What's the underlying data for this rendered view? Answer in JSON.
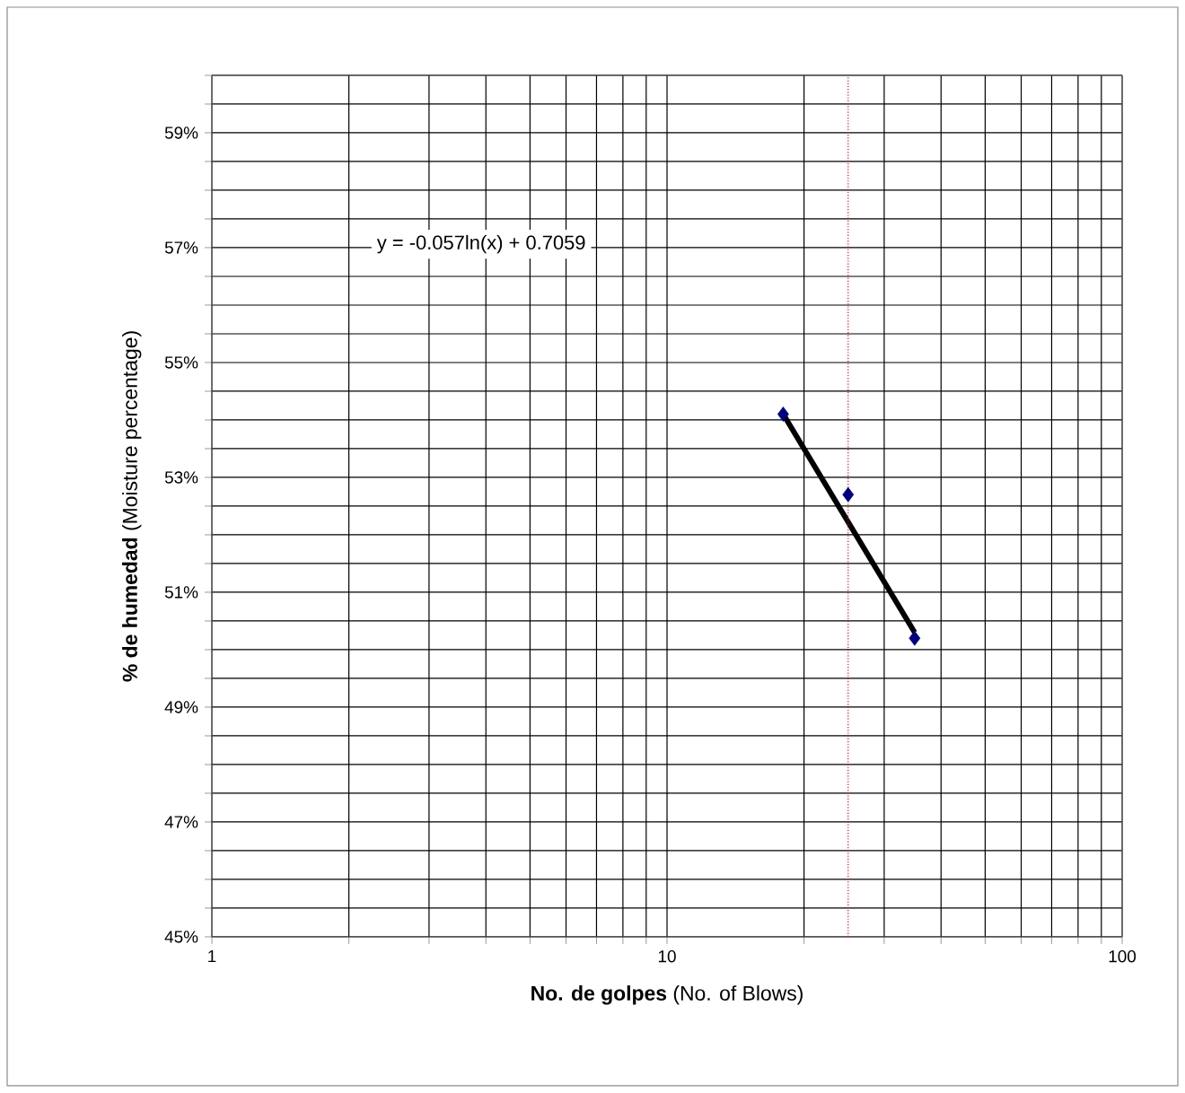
{
  "chart_data": {
    "type": "scatter",
    "xlabel": "**No. de golpes** (No. of Blows)",
    "ylabel": "**% de humedad** (Moisture percentage)",
    "annotations": [
      "y = -0.057ln(x) + 0.7059"
    ],
    "series": [
      {
        "color": "#000080",
        "marker": "diamond",
        "x": [
          18,
          25,
          35
        ],
        "values": [
          54.1,
          52.7,
          50.2
        ]
      },
      {
        "type": "line",
        "color": "#000000",
        "marker": "none",
        "line_style": "solid",
        "x": [
          18,
          35
        ],
        "values": [
          54.1,
          50.3
        ]
      }
    ],
    "log": "x",
    "xlim": [
      1,
      100
    ],
    "xticks": [
      1,
      {
        "value": 2,
        "label": null
      },
      {
        "value": 3,
        "label": null
      },
      {
        "value": 4,
        "label": null
      },
      {
        "value": 5,
        "label": null
      },
      {
        "value": 6,
        "label": null
      },
      {
        "value": 7,
        "label": null
      },
      {
        "value": 8,
        "label": null
      },
      {
        "value": 9,
        "label": null
      },
      10,
      {
        "value": 20,
        "label": null
      },
      {
        "value": 30,
        "label": null
      },
      {
        "value": 40,
        "label": null
      },
      {
        "value": 50,
        "label": null
      },
      {
        "value": 60,
        "label": null
      },
      {
        "value": 70,
        "label": null
      },
      {
        "value": 80,
        "label": null
      },
      {
        "value": 90,
        "label": null
      },
      100
    ],
    "ylim": [
      45,
      60
    ],
    "yticks": [
      {
        "value": 45,
        "label": "45%"
      },
      {
        "value": 45.5,
        "label": null
      },
      {
        "value": 46,
        "label": null
      },
      {
        "value": 46.5,
        "label": null
      },
      {
        "value": 47,
        "label": "47%"
      },
      {
        "value": 47.5,
        "label": null
      },
      {
        "value": 48,
        "label": null
      },
      {
        "value": 48.5,
        "label": null
      },
      {
        "value": 49,
        "label": "49%"
      },
      {
        "value": 49.5,
        "label": null
      },
      {
        "value": 50,
        "label": null
      },
      {
        "value": 50.5,
        "label": null
      },
      {
        "value": 51,
        "label": "51%"
      },
      {
        "value": 51.5,
        "label": null
      },
      {
        "value": 52,
        "label": null
      },
      {
        "value": 52.5,
        "label": null
      },
      {
        "value": 53,
        "label": "53%"
      },
      {
        "value": 53.5,
        "label": null
      },
      {
        "value": 54,
        "label": null
      },
      {
        "value": 54.5,
        "label": null
      },
      {
        "value": 55,
        "label": "55%"
      },
      {
        "value": 55.5,
        "label": null
      },
      {
        "value": 56,
        "label": null
      },
      {
        "value": 56.5,
        "label": null
      },
      {
        "value": 57,
        "label": "57%"
      },
      {
        "value": 57.5,
        "label": null
      },
      {
        "value": 58,
        "label": null
      },
      {
        "value": 58.5,
        "label": null
      },
      {
        "value": 59,
        "label": "59%"
      },
      {
        "value": 59.5,
        "label": null
      },
      {
        "value": 60,
        "label": null
      }
    ],
    "grid": true,
    "ref_lines": [
      {
        "axis": "x",
        "value": 25,
        "color": "#ff0000",
        "line_style": "dotted"
      }
    ]
  }
}
